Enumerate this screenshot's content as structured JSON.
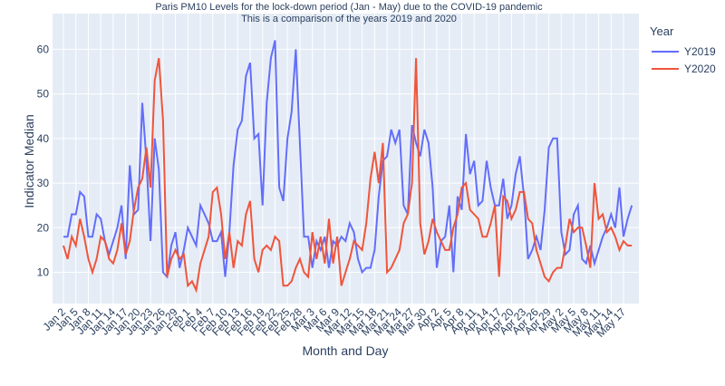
{
  "chart_data": {
    "type": "line",
    "title": "Paris PM10 Levels for the lock-down period (Jan - May) due to the COVID-19 pandemic",
    "subtitle": "This is a comparison of the years 2019 and 2020",
    "x_label": "Month and Day",
    "y_label": "Indicator Median",
    "legend_title": "Year",
    "legend_position": "top-right",
    "grid": true,
    "categories": [
      "Jan 2",
      null,
      null,
      "Jan 5",
      null,
      null,
      "Jan 8",
      null,
      null,
      "Jan 11",
      null,
      null,
      "Jan 14",
      null,
      null,
      "Jan 17",
      null,
      null,
      "Jan 20",
      null,
      null,
      "Jan 23",
      null,
      null,
      "Jan 26",
      null,
      null,
      "Jan 29",
      null,
      null,
      "Feb 1",
      null,
      null,
      "Feb 4",
      null,
      null,
      "Feb 7",
      null,
      null,
      "Feb 10",
      null,
      null,
      "Feb 13",
      null,
      null,
      "Feb 16",
      null,
      null,
      "Feb 19",
      null,
      null,
      "Feb 22",
      null,
      null,
      "Feb 25",
      null,
      null,
      "Feb 28",
      null,
      null,
      "Mar 3",
      null,
      null,
      "Mar 6",
      null,
      null,
      "Mar 9",
      null,
      null,
      "Mar 12",
      null,
      null,
      "Mar 15",
      null,
      null,
      "Mar 18",
      null,
      null,
      "Mar 21",
      null,
      null,
      "Mar 24",
      null,
      null,
      "Mar 27",
      null,
      null,
      "Mar 30",
      null,
      null,
      "Apr 2",
      null,
      null,
      "Apr 5",
      null,
      null,
      "Apr 8",
      null,
      null,
      "Apr 11",
      null,
      null,
      "Apr 14",
      null,
      null,
      "Apr 17",
      null,
      null,
      "Apr 20",
      null,
      null,
      "Apr 23",
      null,
      null,
      "Apr 26",
      null,
      null,
      "Apr 29",
      null,
      null,
      "May 2",
      null,
      null,
      "May 5",
      null,
      null,
      "May 8",
      null,
      null,
      "May 11",
      null,
      null,
      "May 14",
      null,
      null,
      "May 17",
      null,
      null
    ],
    "ylim": [
      3,
      68
    ],
    "yticks": [
      10,
      20,
      30,
      40,
      50,
      60
    ],
    "series": [
      {
        "name": "Y2019",
        "color": "#636efa",
        "values": [
          18,
          18,
          23,
          23,
          28,
          27,
          18,
          18,
          23,
          22,
          17,
          14,
          17,
          20,
          25,
          13,
          34,
          23,
          24,
          48,
          35,
          17,
          40,
          33,
          10,
          9,
          16,
          19,
          11,
          15,
          20,
          18,
          16,
          25,
          23,
          21,
          17,
          17,
          19,
          9,
          19,
          34,
          42,
          44,
          54,
          57,
          40,
          41,
          25,
          48,
          58,
          62,
          29,
          26,
          40,
          46,
          60,
          39,
          18,
          18,
          11,
          17,
          15,
          18,
          11,
          17,
          16,
          18,
          17,
          21,
          19,
          13,
          10,
          11,
          11,
          15,
          27,
          35,
          36,
          42,
          39,
          42,
          25,
          23,
          43,
          39,
          36,
          42,
          39,
          29,
          11,
          17,
          18,
          25,
          10,
          27,
          24,
          41,
          32,
          35,
          25,
          26,
          35,
          29,
          25,
          25,
          31,
          22,
          25,
          32,
          36,
          27,
          13,
          15,
          18,
          15,
          24,
          38,
          40,
          40,
          19,
          14,
          15,
          23,
          25,
          13,
          12,
          16,
          12,
          15,
          18,
          20,
          23,
          20,
          29,
          18,
          22,
          25
        ]
      },
      {
        "name": "Y2020",
        "color": "#ef553b",
        "values": [
          16,
          13,
          18,
          16,
          22,
          18,
          13,
          10,
          13,
          18,
          17,
          13,
          12,
          15,
          21,
          14,
          17,
          24,
          29,
          31,
          38,
          29,
          53,
          58,
          44,
          9,
          13,
          15,
          13,
          14,
          7,
          8,
          6,
          12,
          15,
          18,
          28,
          29,
          23,
          13,
          19,
          11,
          17,
          16,
          23,
          26,
          13,
          10,
          15,
          16,
          15,
          18,
          17,
          7,
          7,
          8,
          11,
          13,
          10,
          9,
          19,
          13,
          18,
          12,
          22,
          12,
          18,
          7,
          10,
          13,
          17,
          16,
          15,
          21,
          31,
          37,
          30,
          39,
          10,
          11,
          13,
          15,
          21,
          23,
          30,
          58,
          21,
          14,
          17,
          22,
          19,
          17,
          15,
          15,
          20,
          23,
          29,
          30,
          24,
          23,
          22,
          18,
          18,
          21,
          25,
          9,
          27,
          26,
          22,
          24,
          28,
          28,
          22,
          21,
          15,
          12,
          9,
          8,
          10,
          11,
          11,
          16,
          22,
          19,
          20,
          20,
          16,
          11,
          30,
          22,
          23,
          19,
          20,
          18,
          15,
          17,
          16,
          16
        ]
      }
    ]
  }
}
